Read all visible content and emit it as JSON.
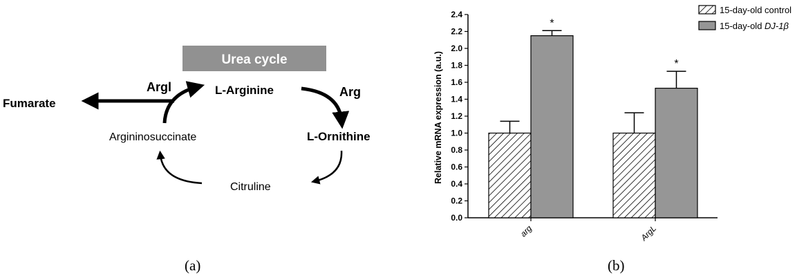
{
  "panel_a": {
    "banner": "Urea cycle",
    "fumarate": "Fumarate",
    "argl_enzyme": "Argl",
    "l_arginine": "L-Arginine",
    "arg_enzyme": "Arg",
    "l_ornithine": "L-Ornithine",
    "citruline": "Citruline",
    "argininosuccinate": "Argininosuccinate",
    "caption": "(a)",
    "colors": {
      "banner_fill": "#919191",
      "banner_text": "#ffffff",
      "arrows": "#000000"
    }
  },
  "panel_b": {
    "caption": "(b)",
    "legend": [
      {
        "label": "15-day-old control",
        "pattern": "hatched"
      },
      {
        "label": "15-day-old ",
        "italic": "DJ-1β",
        "pattern": "gray"
      }
    ],
    "colors": {
      "treated_fill": "#969696",
      "control_fill": "#ffffff"
    }
  },
  "chart_data": {
    "type": "bar",
    "ylabel": "Relative mRNA expression (a.u.)",
    "xlabel": "",
    "ylim": [
      0,
      2.4
    ],
    "yticks": [
      "0.0",
      "0.2",
      "0.4",
      "0.6",
      "0.8",
      "1.0",
      "1.2",
      "1.4",
      "1.6",
      "1.8",
      "2.0",
      "2.2",
      "2.4"
    ],
    "categories": [
      "arg",
      "ArgL"
    ],
    "series": [
      {
        "name": "15-day-old control",
        "values": [
          1.0,
          1.0
        ],
        "errors": [
          0.14,
          0.24
        ]
      },
      {
        "name": "15-day-old DJ-1β",
        "values": [
          2.15,
          1.53
        ],
        "errors": [
          0.06,
          0.2
        ]
      }
    ],
    "significance": [
      "*",
      "*"
    ],
    "legend_position": "top-right",
    "grid": false
  }
}
